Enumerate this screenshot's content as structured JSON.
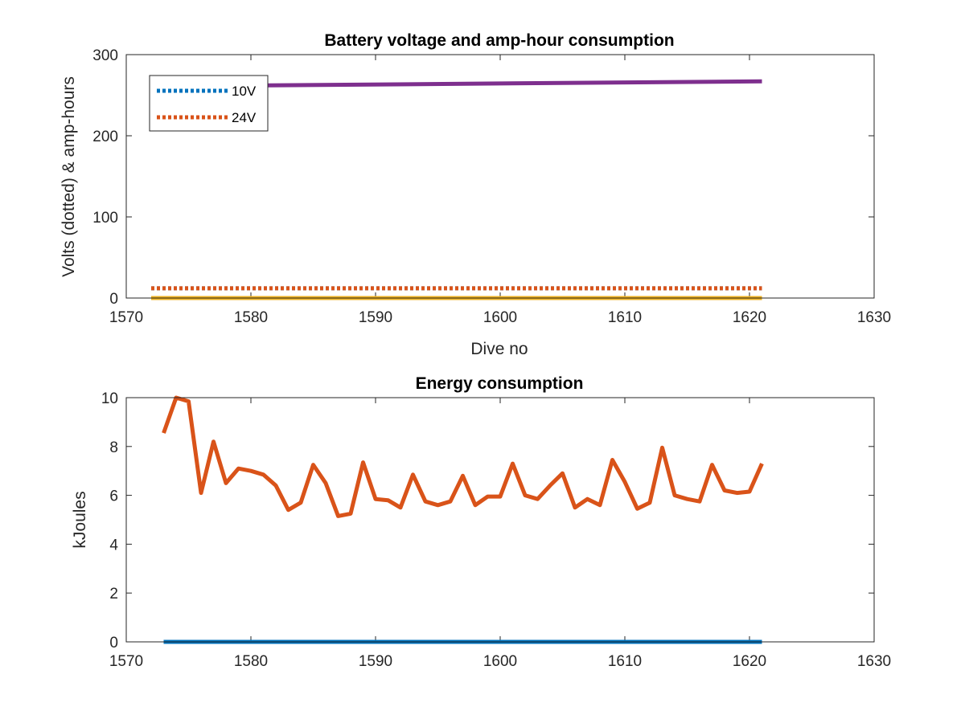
{
  "chart_data": [
    {
      "type": "line",
      "title": "Battery voltage and amp-hour consumption",
      "xlabel": "Dive no",
      "ylabel": "Volts (dotted) & amp-hours",
      "xlim": [
        1570,
        1630
      ],
      "ylim": [
        0,
        300
      ],
      "xticks": [
        "1570",
        "1580",
        "1590",
        "1600",
        "1610",
        "1620",
        "1630"
      ],
      "yticks": [
        "0",
        "100",
        "200",
        "300"
      ],
      "legend_position": "top-left",
      "x": [
        1572,
        1621
      ],
      "series": [
        {
          "name": "10V",
          "style": "dotted",
          "color": "#0072BD",
          "values": [
            12,
            12
          ]
        },
        {
          "name": "24V",
          "style": "dotted",
          "color": "#D95319",
          "values": [
            12,
            12
          ]
        },
        {
          "name": "",
          "style": "solid",
          "color": "#EDB120",
          "values": [
            0,
            0
          ]
        },
        {
          "name": "",
          "style": "solid",
          "color": "#7E2F8E",
          "values": [
            261,
            267
          ]
        }
      ]
    },
    {
      "type": "line",
      "title": "Energy consumption",
      "xlabel": "",
      "ylabel": "kJoules",
      "xlim": [
        1570,
        1630
      ],
      "ylim": [
        0,
        10
      ],
      "xticks": [
        "1570",
        "1580",
        "1590",
        "1600",
        "1610",
        "1620",
        "1630"
      ],
      "yticks": [
        "0",
        "2",
        "4",
        "6",
        "8",
        "10"
      ],
      "x": [
        1573,
        1574,
        1575,
        1576,
        1577,
        1578,
        1579,
        1580,
        1581,
        1582,
        1583,
        1584,
        1585,
        1586,
        1587,
        1588,
        1589,
        1590,
        1591,
        1592,
        1593,
        1594,
        1595,
        1596,
        1597,
        1598,
        1599,
        1600,
        1601,
        1602,
        1603,
        1604,
        1605,
        1606,
        1607,
        1608,
        1609,
        1610,
        1611,
        1612,
        1613,
        1614,
        1615,
        1616,
        1617,
        1618,
        1619,
        1620,
        1621
      ],
      "series": [
        {
          "name": "",
          "style": "solid",
          "color": "#D95319",
          "values": [
            8.55,
            10.0,
            9.85,
            6.1,
            8.2,
            6.5,
            7.1,
            7.0,
            6.85,
            6.4,
            5.4,
            5.7,
            7.25,
            6.5,
            5.15,
            5.25,
            7.35,
            5.85,
            5.8,
            5.5,
            6.85,
            5.75,
            5.6,
            5.75,
            6.8,
            5.6,
            5.95,
            5.95,
            7.3,
            6.0,
            5.85,
            6.4,
            6.9,
            5.5,
            5.85,
            5.6,
            7.45,
            6.55,
            5.45,
            5.7,
            7.95,
            6.0,
            5.85,
            5.75,
            7.25,
            6.2,
            6.1,
            6.15,
            7.3
          ]
        },
        {
          "name": "",
          "style": "solid",
          "color": "#0072BD",
          "values": [
            0,
            0,
            0,
            0,
            0,
            0,
            0,
            0,
            0,
            0,
            0,
            0,
            0,
            0,
            0,
            0,
            0,
            0,
            0,
            0,
            0,
            0,
            0,
            0,
            0,
            0,
            0,
            0,
            0,
            0,
            0,
            0,
            0,
            0,
            0,
            0,
            0,
            0,
            0,
            0,
            0,
            0,
            0,
            0,
            0,
            0,
            0,
            0,
            0
          ]
        }
      ]
    }
  ]
}
